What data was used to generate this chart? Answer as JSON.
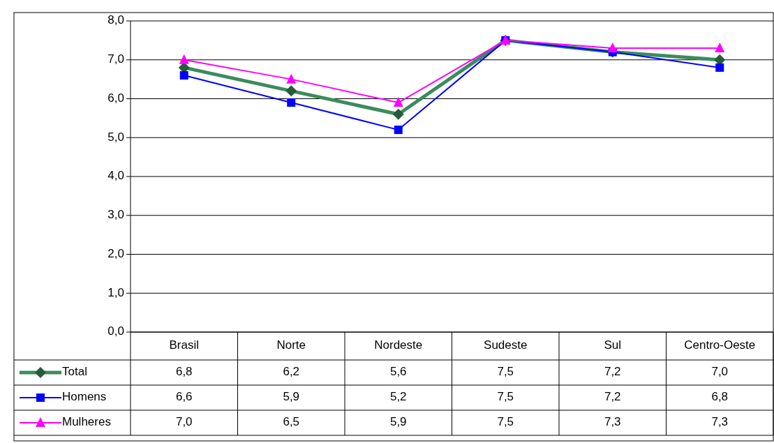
{
  "chart_data": {
    "type": "line",
    "categories": [
      "Brasil",
      "Norte",
      "Nordeste",
      "Sudeste",
      "Sul",
      "Centro-Oeste"
    ],
    "series": [
      {
        "name": "Total",
        "color": "#3a8c5c",
        "marker": "diamond",
        "values": [
          6.8,
          6.2,
          5.6,
          7.5,
          7.2,
          7.0
        ],
        "value_labels": [
          "6,8",
          "6,2",
          "5,6",
          "7,5",
          "7,2",
          "7,0"
        ]
      },
      {
        "name": "Homens",
        "color": "#0000ff",
        "marker": "square",
        "values": [
          6.6,
          5.9,
          5.2,
          7.5,
          7.2,
          6.8
        ],
        "value_labels": [
          "6,6",
          "5,9",
          "5,2",
          "7,5",
          "7,2",
          "6,8"
        ]
      },
      {
        "name": "Mulheres",
        "color": "#ff00ff",
        "marker": "triangle",
        "values": [
          7.0,
          6.5,
          5.9,
          7.5,
          7.3,
          7.3
        ],
        "value_labels": [
          "7,0",
          "6,5",
          "5,9",
          "7,5",
          "7,3",
          "7,3"
        ]
      }
    ],
    "ylim": [
      0,
      8
    ],
    "yticks": [
      {
        "value": 0,
        "label": "0,0"
      },
      {
        "value": 1,
        "label": "1,0"
      },
      {
        "value": 2,
        "label": "2,0"
      },
      {
        "value": 3,
        "label": "3,0"
      },
      {
        "value": 4,
        "label": "4,0"
      },
      {
        "value": 5,
        "label": "5,0"
      },
      {
        "value": 6,
        "label": "6,0"
      },
      {
        "value": 7,
        "label": "7,0"
      },
      {
        "value": 8,
        "label": "8,0"
      }
    ],
    "grid": "y",
    "legend": "bottom left"
  }
}
